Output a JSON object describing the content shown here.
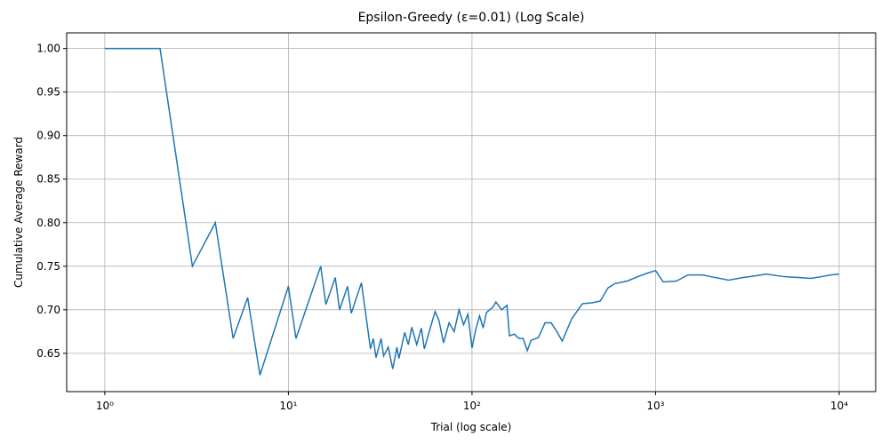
{
  "chart_data": {
    "type": "line",
    "title": "Epsilon-Greedy (ε=0.01) (Log Scale)",
    "x_label": "Trial (log scale)",
    "y_label": "Cumulative Average Reward",
    "xscale": "log",
    "grid": true,
    "xlim": [
      0.62,
      15800
    ],
    "ylim": [
      0.606,
      1.018
    ],
    "xticks": [
      {
        "value": 1,
        "label": "10⁰"
      },
      {
        "value": 10,
        "label": "10¹"
      },
      {
        "value": 100,
        "label": "10²"
      },
      {
        "value": 1000,
        "label": "10³"
      },
      {
        "value": 10000,
        "label": "10⁴"
      }
    ],
    "yticks": [
      {
        "value": 0.65,
        "label": "0.65"
      },
      {
        "value": 0.7,
        "label": "0.70"
      },
      {
        "value": 0.75,
        "label": "0.75"
      },
      {
        "value": 0.8,
        "label": "0.80"
      },
      {
        "value": 0.85,
        "label": "0.85"
      },
      {
        "value": 0.9,
        "label": "0.90"
      },
      {
        "value": 0.95,
        "label": "0.95"
      },
      {
        "value": 1,
        "label": "1.00"
      }
    ],
    "x": [
      1,
      2,
      3,
      4,
      5,
      6,
      7,
      10,
      11,
      15,
      16,
      18,
      19,
      21,
      22,
      25,
      28,
      29,
      30,
      32,
      33,
      35,
      37,
      39,
      40,
      43,
      45,
      47,
      50,
      53,
      55,
      60,
      63,
      66,
      70,
      75,
      80,
      85,
      90,
      95,
      100,
      105,
      110,
      115,
      120,
      130,
      135,
      145,
      155,
      160,
      170,
      180,
      190,
      200,
      210,
      230,
      250,
      270,
      290,
      310,
      350,
      400,
      450,
      500,
      550,
      600,
      700,
      800,
      900,
      1000,
      1100,
      1300,
      1500,
      1800,
      2000,
      2500,
      3000,
      3500,
      4000,
      5000,
      6000,
      7000,
      8000,
      9000,
      10000
    ],
    "series": [
      {
        "name": "Cumulative Average Reward",
        "color": "#1f77b4",
        "values": [
          1.0,
          1.0,
          0.75,
          0.8,
          0.667,
          0.714,
          0.625,
          0.727,
          0.667,
          0.75,
          0.706,
          0.737,
          0.7,
          0.727,
          0.696,
          0.731,
          0.655,
          0.667,
          0.645,
          0.667,
          0.647,
          0.657,
          0.632,
          0.657,
          0.644,
          0.674,
          0.66,
          0.68,
          0.66,
          0.679,
          0.655,
          0.683,
          0.698,
          0.688,
          0.662,
          0.685,
          0.675,
          0.7,
          0.683,
          0.695,
          0.656,
          0.678,
          0.693,
          0.679,
          0.697,
          0.703,
          0.709,
          0.7,
          0.705,
          0.67,
          0.672,
          0.667,
          0.667,
          0.653,
          0.665,
          0.668,
          0.685,
          0.685,
          0.675,
          0.664,
          0.69,
          0.707,
          0.708,
          0.71,
          0.725,
          0.73,
          0.733,
          0.738,
          0.742,
          0.745,
          0.732,
          0.733,
          0.74,
          0.74,
          0.738,
          0.734,
          0.737,
          0.739,
          0.741,
          0.738,
          0.737,
          0.736,
          0.738,
          0.74,
          0.741
        ]
      }
    ]
  }
}
